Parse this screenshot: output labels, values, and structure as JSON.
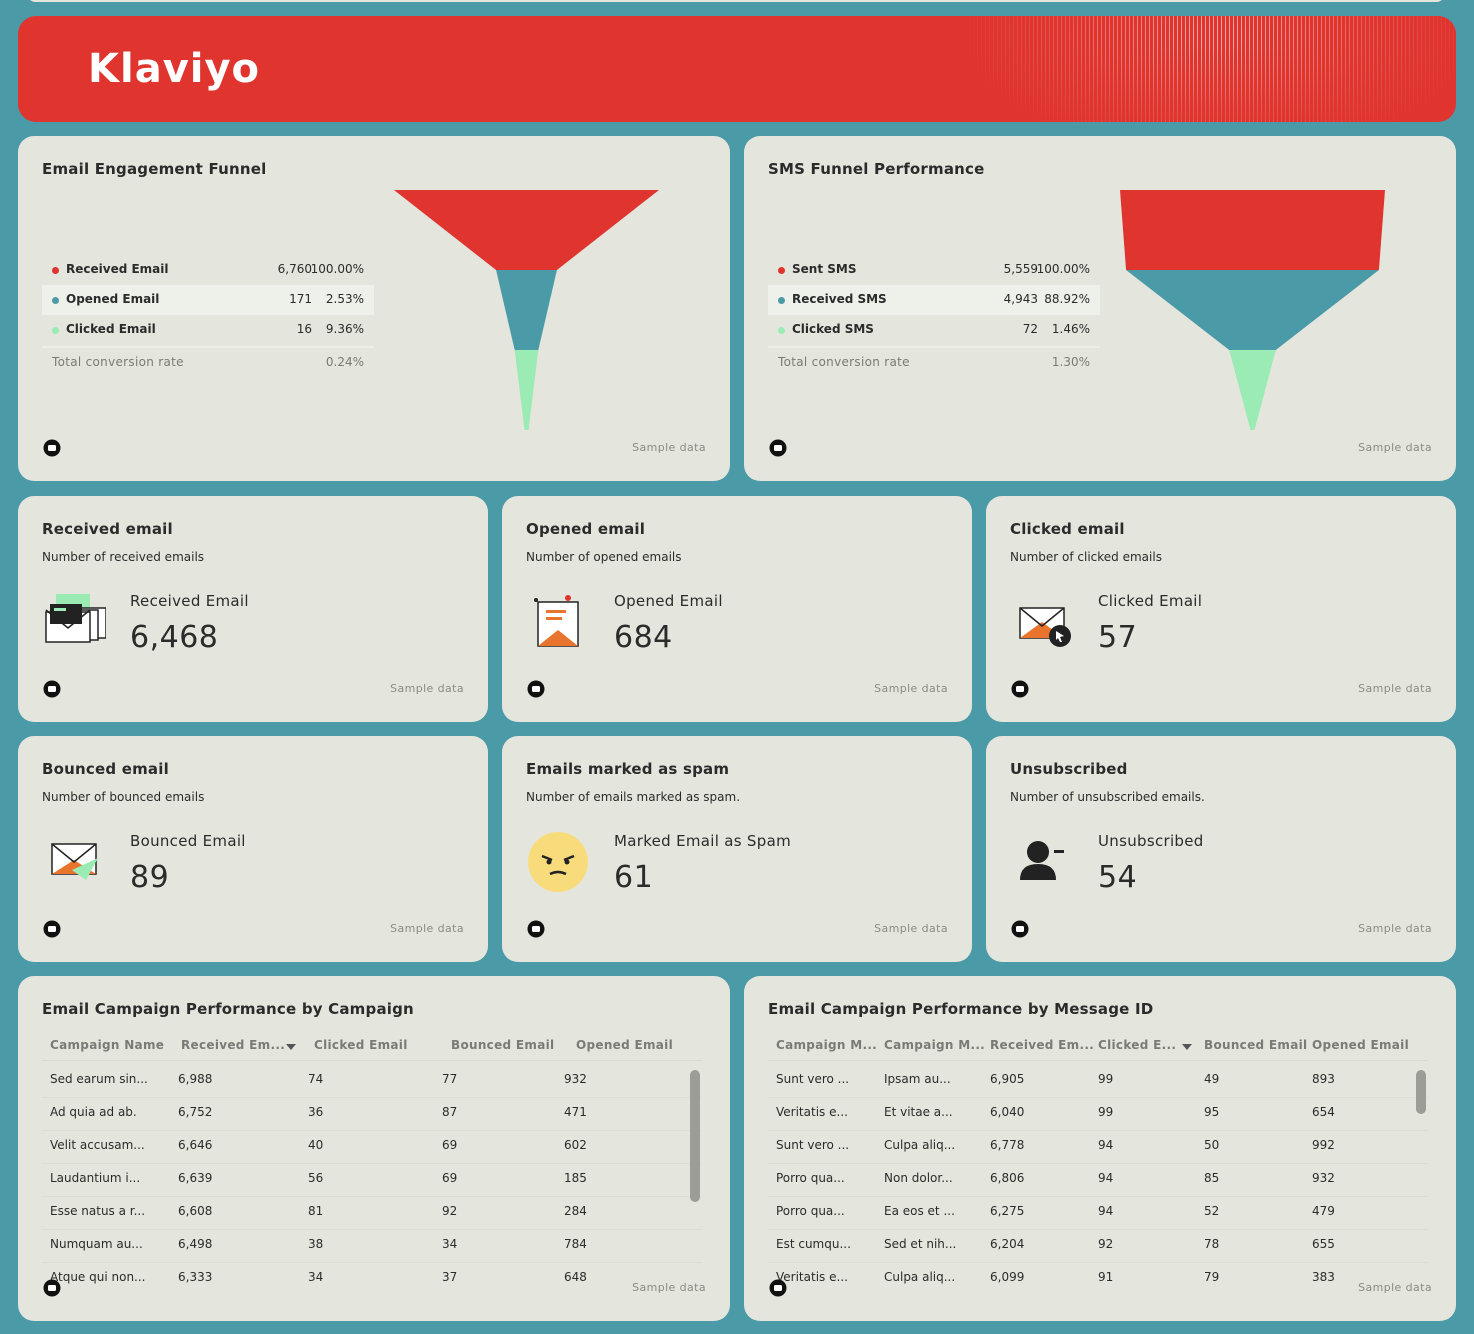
{
  "header": {
    "brand": "Klaviyo"
  },
  "funnels": [
    {
      "title": "Email Engagement Funnel",
      "stages": [
        {
          "name": "Received Email",
          "color": "#e0342f",
          "value": 6760,
          "value_label": "6,760",
          "share": "100.00%"
        },
        {
          "name": "Opened Email",
          "color": "#4a9aa8",
          "value": 171,
          "value_label": "171",
          "share": "2.53%"
        },
        {
          "name": "Clicked Email",
          "color": "#9aebb4",
          "value": 16,
          "value_label": "16",
          "share": "9.36%"
        }
      ],
      "total_label": "Total conversion rate",
      "total": "0.24%",
      "footer": "Sample data"
    },
    {
      "title": "SMS Funnel Performance",
      "stages": [
        {
          "name": "Sent SMS",
          "color": "#e0342f",
          "value": 5559,
          "value_label": "5,559",
          "share": "100.00%"
        },
        {
          "name": "Received SMS",
          "color": "#4a9aa8",
          "value": 4943,
          "value_label": "4,943",
          "share": "88.92%"
        },
        {
          "name": "Clicked SMS",
          "color": "#9aebb4",
          "value": 72,
          "value_label": "72",
          "share": "1.46%"
        }
      ],
      "total_label": "Total conversion rate",
      "total": "1.30%",
      "footer": "Sample data"
    }
  ],
  "kpis": [
    {
      "title": "Received email",
      "subtitle": "Number of received emails",
      "label": "Received Email",
      "value": "6,468",
      "footer": "Sample data"
    },
    {
      "title": "Opened email",
      "subtitle": "Number of opened emails",
      "label": "Opened Email",
      "value": "684",
      "footer": "Sample data"
    },
    {
      "title": "Clicked email",
      "subtitle": "Number of clicked emails",
      "label": "Clicked Email",
      "value": "57",
      "footer": "Sample data"
    },
    {
      "title": "Bounced email",
      "subtitle": "Number of bounced emails",
      "label": "Bounced Email",
      "value": "89",
      "footer": "Sample data"
    },
    {
      "title": "Emails marked as spam",
      "subtitle": "Number of emails marked as spam.",
      "label": "Marked Email as Spam",
      "value": "61",
      "footer": "Sample data"
    },
    {
      "title": "Unsubscribed",
      "subtitle": "Number of unsubscribed emails.",
      "label": "Unsubscribed",
      "value": "54",
      "footer": "Sample data"
    }
  ],
  "tables": [
    {
      "title": "Email Campaign Performance by Campaign",
      "sort_column": 1,
      "columns": [
        "Campaign Name",
        "Received Em...",
        "Clicked Email",
        "Bounced Email",
        "Opened Email"
      ],
      "rows": [
        [
          "Sed earum sin...",
          "6,988",
          "74",
          "77",
          "932"
        ],
        [
          "Ad quia ad ab.",
          "6,752",
          "36",
          "87",
          "471"
        ],
        [
          "Velit accusam...",
          "6,646",
          "40",
          "69",
          "602"
        ],
        [
          "Laudantium i...",
          "6,639",
          "56",
          "69",
          "185"
        ],
        [
          "Esse natus a r...",
          "6,608",
          "81",
          "92",
          "284"
        ],
        [
          "Numquam au...",
          "6,498",
          "38",
          "34",
          "784"
        ],
        [
          "Atque qui non...",
          "6,333",
          "34",
          "37",
          "648"
        ]
      ],
      "footer": "Sample data"
    },
    {
      "title": "Email Campaign Performance by Message ID",
      "sort_column": 3,
      "columns": [
        "Campaign M...",
        "Campaign M...",
        "Received Em...",
        "Clicked E...",
        "Bounced Email",
        "Opened Email"
      ],
      "rows": [
        [
          "Sunt vero ...",
          "Ipsam au...",
          "6,905",
          "99",
          "49",
          "893"
        ],
        [
          "Veritatis e...",
          "Et vitae a...",
          "6,040",
          "99",
          "95",
          "654"
        ],
        [
          "Sunt vero ...",
          "Culpa aliq...",
          "6,778",
          "94",
          "50",
          "992"
        ],
        [
          "Porro qua...",
          "Non dolor...",
          "6,806",
          "94",
          "85",
          "932"
        ],
        [
          "Porro qua...",
          "Ea eos et ...",
          "6,275",
          "94",
          "52",
          "479"
        ],
        [
          "Est cumqu...",
          "Sed et nih...",
          "6,204",
          "92",
          "78",
          "655"
        ],
        [
          "Veritatis e...",
          "Culpa aliq...",
          "6,099",
          "91",
          "79",
          "383"
        ]
      ],
      "footer": "Sample data"
    }
  ]
}
